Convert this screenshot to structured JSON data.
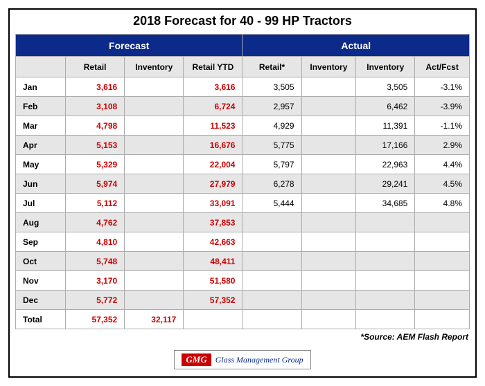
{
  "title": "2018 Forecast for 40 - 99 HP Tractors",
  "header": {
    "forecast": "Forecast",
    "actual": "Actual",
    "cols": {
      "blank": "",
      "retail": "Retail",
      "inventory": "Inventory",
      "retail_ytd": "Retail YTD",
      "retail_star": "Retail*",
      "inventory_a": "Inventory",
      "inventory_b": "Inventory",
      "act_fcst": "Act/Fcst"
    }
  },
  "rows": [
    {
      "m": "Jan",
      "fr": "3,616",
      "fi": "",
      "fy": "3,616",
      "ar": "3,505",
      "ai": "",
      "ai2": "3,505",
      "af": "-3.1%",
      "sh": false
    },
    {
      "m": "Feb",
      "fr": "3,108",
      "fi": "",
      "fy": "6,724",
      "ar": "2,957",
      "ai": "",
      "ai2": "6,462",
      "af": "-3.9%",
      "sh": true
    },
    {
      "m": "Mar",
      "fr": "4,798",
      "fi": "",
      "fy": "11,523",
      "ar": "4,929",
      "ai": "",
      "ai2": "11,391",
      "af": "-1.1%",
      "sh": false
    },
    {
      "m": "Apr",
      "fr": "5,153",
      "fi": "",
      "fy": "16,676",
      "ar": "5,775",
      "ai": "",
      "ai2": "17,166",
      "af": "2.9%",
      "sh": true
    },
    {
      "m": "May",
      "fr": "5,329",
      "fi": "",
      "fy": "22,004",
      "ar": "5,797",
      "ai": "",
      "ai2": "22,963",
      "af": "4.4%",
      "sh": false
    },
    {
      "m": "Jun",
      "fr": "5,974",
      "fi": "",
      "fy": "27,979",
      "ar": "6,278",
      "ai": "",
      "ai2": "29,241",
      "af": "4.5%",
      "sh": true
    },
    {
      "m": "Jul",
      "fr": "5,112",
      "fi": "",
      "fy": "33,091",
      "ar": "5,444",
      "ai": "",
      "ai2": "34,685",
      "af": "4.8%",
      "sh": false
    },
    {
      "m": "Aug",
      "fr": "4,762",
      "fi": "",
      "fy": "37,853",
      "ar": "",
      "ai": "",
      "ai2": "",
      "af": "",
      "sh": true
    },
    {
      "m": "Sep",
      "fr": "4,810",
      "fi": "",
      "fy": "42,663",
      "ar": "",
      "ai": "",
      "ai2": "",
      "af": "",
      "sh": false
    },
    {
      "m": "Oct",
      "fr": "5,748",
      "fi": "",
      "fy": "48,411",
      "ar": "",
      "ai": "",
      "ai2": "",
      "af": "",
      "sh": true
    },
    {
      "m": "Nov",
      "fr": "3,170",
      "fi": "",
      "fy": "51,580",
      "ar": "",
      "ai": "",
      "ai2": "",
      "af": "",
      "sh": false
    },
    {
      "m": "Dec",
      "fr": "5,772",
      "fi": "",
      "fy": "57,352",
      "ar": "",
      "ai": "",
      "ai2": "",
      "af": "",
      "sh": true
    }
  ],
  "total": {
    "m": "Total",
    "fr": "57,352",
    "fi": "32,117",
    "fy": "",
    "ar": "",
    "ai": "",
    "ai2": "",
    "af": ""
  },
  "source": "*Source: AEM Flash Report",
  "logo": {
    "mark": "GMG",
    "text": "Glass Management Group"
  }
}
